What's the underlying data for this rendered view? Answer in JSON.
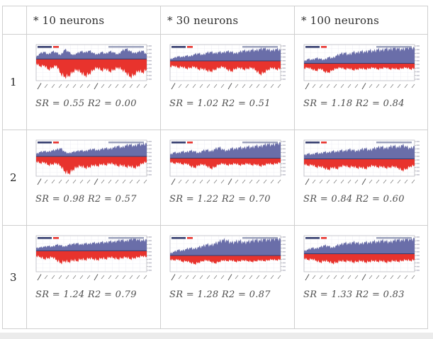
{
  "table": {
    "corner_label": "",
    "column_headers": [
      "* 10 neurons",
      "* 30 neurons",
      "* 100 neurons"
    ],
    "row_labels": [
      "1",
      "2",
      "3"
    ]
  },
  "captions": [
    [
      "SR = 0.55 R2 = 0.00",
      "SR = 1.02 R2 = 0.51",
      "SR = 1.18 R2 = 0.84"
    ],
    [
      "SR = 0.98 R2 = 0.57",
      "SR = 1.22 R2 = 0.70",
      "SR = 0.84 R2 = 0.60"
    ],
    [
      "SR = 1.24 R2 = 0.79",
      "SR = 1.28 R2 = 0.87",
      "SR = 1.33 R2 = 0.83"
    ]
  ],
  "style": {
    "area_up": "#6a6ea9",
    "area_down": "#e8332d",
    "baseline": "#343c6e",
    "grid": "#ececf4",
    "chart_border": "#b9b9c1",
    "axis_mark": "#8a8a94",
    "axis_label_deco": "#c4c4cf",
    "header_deco_right": "#9aa0bb",
    "table_border": "#cfcfcf",
    "footer_strip": "#ebebeb"
  },
  "chart_data": [
    {
      "type": "area",
      "row": "1",
      "column": "* 10 neurons",
      "sr": 0.55,
      "r2": 0.0,
      "baseline": 0.4,
      "series": [
        {
          "name": "cumulative-return-above-zero",
          "values": [
            0.15,
            0.45,
            0.55,
            0.35,
            0.6,
            0.5,
            0.3,
            0.75,
            0.55,
            0.3,
            0.45,
            0.6,
            0.5,
            0.65,
            0.45,
            0.35,
            0.55,
            0.4,
            0.6,
            0.5,
            0.35,
            0.65,
            0.8,
            0.6,
            0.45,
            0.55,
            0.65,
            0.35
          ]
        },
        {
          "name": "drawdown-below-zero",
          "values": [
            0.2,
            0.35,
            0.3,
            0.5,
            0.4,
            0.3,
            0.7,
            0.85,
            0.8,
            0.6,
            0.5,
            0.65,
            0.8,
            0.7,
            0.5,
            0.4,
            0.55,
            0.45,
            0.6,
            0.5,
            0.4,
            0.5,
            0.65,
            0.85,
            0.75,
            0.55,
            0.65,
            0.5
          ]
        }
      ]
    },
    {
      "type": "area",
      "row": "1",
      "column": "* 30 neurons",
      "sr": 1.02,
      "r2": 0.51,
      "baseline": 0.45,
      "series": [
        {
          "name": "cumulative-return-above-zero",
          "values": [
            0.1,
            0.2,
            0.3,
            0.25,
            0.35,
            0.3,
            0.45,
            0.5,
            0.4,
            0.55,
            0.6,
            0.5,
            0.6,
            0.55,
            0.65,
            0.6,
            0.5,
            0.6,
            0.7,
            0.65,
            0.75,
            0.7,
            0.8,
            0.85,
            0.75,
            0.7,
            0.8,
            0.75
          ]
        },
        {
          "name": "drawdown-below-zero",
          "values": [
            0.3,
            0.25,
            0.35,
            0.3,
            0.4,
            0.35,
            0.3,
            0.45,
            0.4,
            0.5,
            0.55,
            0.45,
            0.35,
            0.3,
            0.45,
            0.55,
            0.4,
            0.35,
            0.45,
            0.4,
            0.35,
            0.5,
            0.7,
            0.6,
            0.45,
            0.35,
            0.45,
            0.4
          ]
        }
      ]
    },
    {
      "type": "area",
      "row": "1",
      "column": "* 100 neurons",
      "sr": 1.18,
      "r2": 0.84,
      "baseline": 0.52,
      "series": [
        {
          "name": "cumulative-return-above-zero",
          "values": [
            0.1,
            0.25,
            0.2,
            0.3,
            0.25,
            0.2,
            0.35,
            0.3,
            0.45,
            0.55,
            0.6,
            0.5,
            0.65,
            0.6,
            0.7,
            0.65,
            0.75,
            0.7,
            0.8,
            0.75,
            0.85,
            0.8,
            0.9,
            0.85,
            0.8,
            0.9,
            0.95,
            0.9
          ]
        },
        {
          "name": "drawdown-below-zero",
          "values": [
            0.3,
            0.25,
            0.35,
            0.45,
            0.3,
            0.5,
            0.55,
            0.4,
            0.3,
            0.25,
            0.35,
            0.3,
            0.4,
            0.35,
            0.3,
            0.35,
            0.3,
            0.25,
            0.35,
            0.3,
            0.25,
            0.35,
            0.3,
            0.35,
            0.3,
            0.25,
            0.35,
            0.3
          ]
        }
      ]
    },
    {
      "type": "area",
      "row": "2",
      "column": "* 10 neurons",
      "sr": 0.98,
      "r2": 0.57,
      "baseline": 0.45,
      "series": [
        {
          "name": "cumulative-return-above-zero",
          "values": [
            0.15,
            0.3,
            0.35,
            0.3,
            0.4,
            0.45,
            0.55,
            0.3,
            0.2,
            0.3,
            0.35,
            0.4,
            0.35,
            0.45,
            0.5,
            0.4,
            0.5,
            0.55,
            0.5,
            0.6,
            0.7,
            0.6,
            0.75,
            0.8,
            0.7,
            0.85,
            0.8,
            0.9
          ]
        },
        {
          "name": "drawdown-below-zero",
          "values": [
            0.25,
            0.35,
            0.3,
            0.45,
            0.4,
            0.35,
            0.5,
            0.8,
            0.9,
            0.7,
            0.55,
            0.5,
            0.6,
            0.55,
            0.45,
            0.5,
            0.4,
            0.45,
            0.35,
            0.4,
            0.5,
            0.45,
            0.55,
            0.5,
            0.6,
            0.5,
            0.35,
            0.3
          ]
        }
      ]
    },
    {
      "type": "area",
      "row": "2",
      "column": "* 30 neurons",
      "sr": 1.22,
      "r2": 0.7,
      "baseline": 0.5,
      "series": [
        {
          "name": "cumulative-return-above-zero",
          "values": [
            0.2,
            0.35,
            0.3,
            0.4,
            0.35,
            0.45,
            0.4,
            0.3,
            0.45,
            0.5,
            0.4,
            0.55,
            0.65,
            0.5,
            0.45,
            0.6,
            0.55,
            0.65,
            0.6,
            0.7,
            0.65,
            0.75,
            0.7,
            0.8,
            0.85,
            0.8,
            0.9,
            0.95
          ]
        },
        {
          "name": "drawdown-below-zero",
          "values": [
            0.2,
            0.3,
            0.25,
            0.35,
            0.3,
            0.45,
            0.55,
            0.4,
            0.35,
            0.45,
            0.6,
            0.5,
            0.35,
            0.3,
            0.4,
            0.35,
            0.3,
            0.4,
            0.35,
            0.3,
            0.4,
            0.35,
            0.45,
            0.4,
            0.3,
            0.35,
            0.3,
            0.25
          ]
        }
      ]
    },
    {
      "type": "area",
      "row": "2",
      "column": "* 100 neurons",
      "sr": 0.84,
      "r2": 0.6,
      "baseline": 0.52,
      "series": [
        {
          "name": "cumulative-return-above-zero",
          "values": [
            0.2,
            0.3,
            0.25,
            0.35,
            0.3,
            0.4,
            0.35,
            0.45,
            0.4,
            0.5,
            0.45,
            0.55,
            0.5,
            0.45,
            0.55,
            0.6,
            0.5,
            0.6,
            0.65,
            0.7,
            0.6,
            0.7,
            0.75,
            0.65,
            0.8,
            0.7,
            0.6,
            0.75
          ]
        },
        {
          "name": "drawdown-below-zero",
          "values": [
            0.3,
            0.4,
            0.35,
            0.5,
            0.45,
            0.55,
            0.65,
            0.5,
            0.6,
            0.45,
            0.4,
            0.5,
            0.45,
            0.55,
            0.5,
            0.6,
            0.45,
            0.4,
            0.5,
            0.45,
            0.55,
            0.5,
            0.45,
            0.55,
            0.7,
            0.6,
            0.45,
            0.4
          ]
        }
      ]
    },
    {
      "type": "area",
      "row": "3",
      "column": "* 10 neurons",
      "sr": 1.24,
      "r2": 0.79,
      "baseline": 0.42,
      "series": [
        {
          "name": "cumulative-return-above-zero",
          "values": [
            0.2,
            0.25,
            0.3,
            0.35,
            0.3,
            0.45,
            0.4,
            0.3,
            0.45,
            0.5,
            0.55,
            0.45,
            0.55,
            0.5,
            0.6,
            0.55,
            0.65,
            0.6,
            0.7,
            0.65,
            0.75,
            0.8,
            0.7,
            0.85,
            0.9,
            0.8,
            0.75,
            0.85
          ]
        },
        {
          "name": "drawdown-below-zero",
          "values": [
            0.25,
            0.3,
            0.4,
            0.35,
            0.3,
            0.45,
            0.6,
            0.5,
            0.55,
            0.45,
            0.5,
            0.4,
            0.45,
            0.35,
            0.4,
            0.45,
            0.35,
            0.4,
            0.3,
            0.35,
            0.4,
            0.35,
            0.3,
            0.4,
            0.35,
            0.3,
            0.25,
            0.3
          ]
        }
      ]
    },
    {
      "type": "area",
      "row": "3",
      "column": "* 30 neurons",
      "sr": 1.28,
      "r2": 0.87,
      "baseline": 0.55,
      "series": [
        {
          "name": "cumulative-return-above-zero",
          "values": [
            0.1,
            0.2,
            0.3,
            0.25,
            0.35,
            0.4,
            0.35,
            0.45,
            0.5,
            0.6,
            0.55,
            0.65,
            0.75,
            0.85,
            0.8,
            0.7,
            0.75,
            0.8,
            0.7,
            0.75,
            0.8,
            0.85,
            0.8,
            0.9,
            0.85,
            0.9,
            0.95,
            0.9
          ]
        },
        {
          "name": "drawdown-below-zero",
          "values": [
            0.25,
            0.3,
            0.25,
            0.4,
            0.35,
            0.45,
            0.55,
            0.45,
            0.35,
            0.3,
            0.4,
            0.5,
            0.4,
            0.3,
            0.35,
            0.3,
            0.4,
            0.35,
            0.3,
            0.35,
            0.4,
            0.35,
            0.3,
            0.35,
            0.3,
            0.25,
            0.3,
            0.25
          ]
        }
      ]
    },
    {
      "type": "area",
      "row": "3",
      "column": "* 100 neurons",
      "sr": 1.33,
      "r2": 0.83,
      "baseline": 0.5,
      "series": [
        {
          "name": "cumulative-return-above-zero",
          "values": [
            0.15,
            0.25,
            0.35,
            0.3,
            0.4,
            0.5,
            0.45,
            0.35,
            0.5,
            0.55,
            0.65,
            0.6,
            0.7,
            0.65,
            0.6,
            0.7,
            0.65,
            0.75,
            0.7,
            0.8,
            0.75,
            0.7,
            0.8,
            0.85,
            0.8,
            0.9,
            0.85,
            0.95
          ]
        },
        {
          "name": "drawdown-below-zero",
          "values": [
            0.25,
            0.35,
            0.3,
            0.4,
            0.5,
            0.4,
            0.45,
            0.55,
            0.5,
            0.4,
            0.45,
            0.4,
            0.5,
            0.45,
            0.4,
            0.5,
            0.45,
            0.4,
            0.45,
            0.4,
            0.5,
            0.45,
            0.4,
            0.45,
            0.4,
            0.35,
            0.4,
            0.35
          ]
        }
      ]
    }
  ]
}
